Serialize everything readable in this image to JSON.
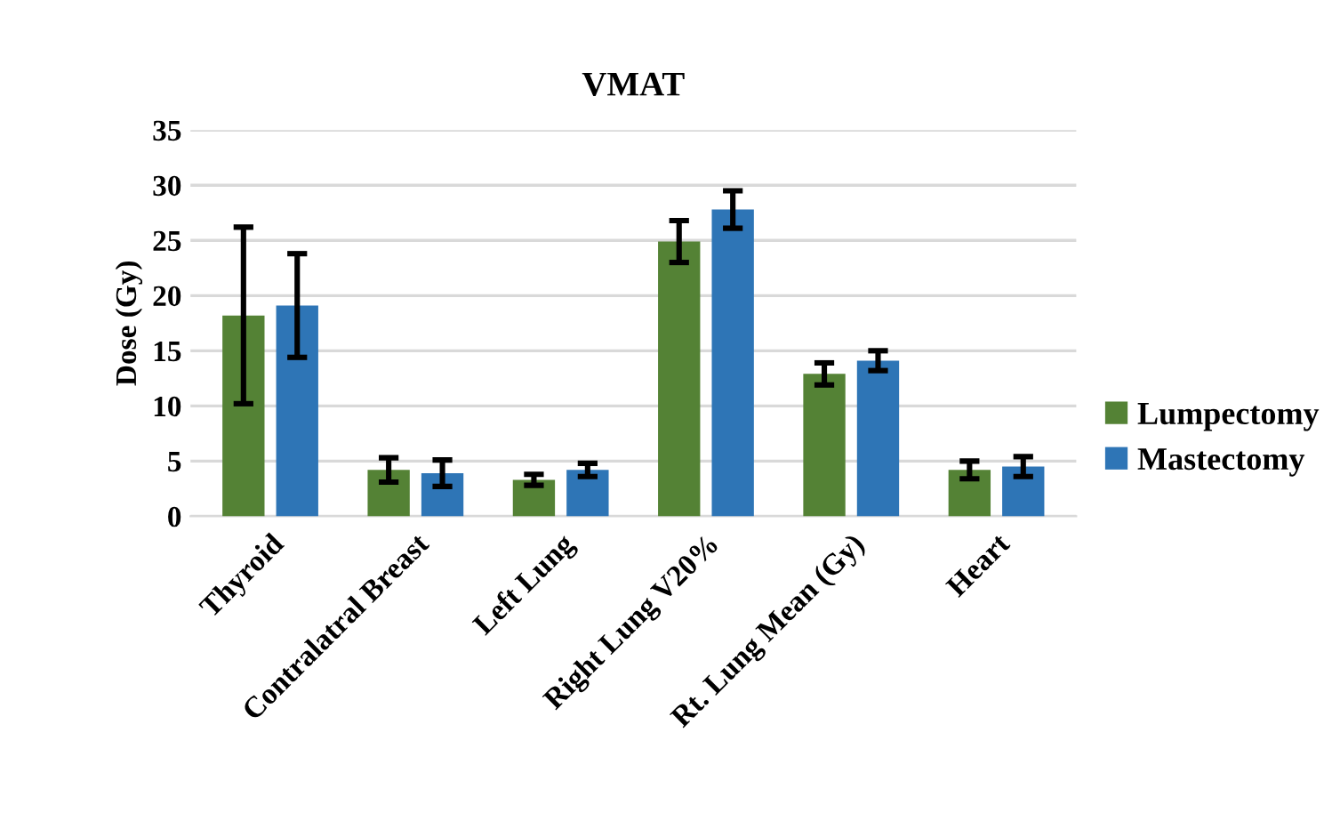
{
  "chart_data": {
    "type": "bar",
    "title": "VMAT",
    "ylabel": "Dose (Gy)",
    "categories": [
      "Thyroid",
      "Contralatral Breast",
      "Left Lung",
      "Right Lung V20%",
      "Rt. Lung Mean (Gy)",
      "Heart"
    ],
    "series": [
      {
        "name": "Lumpectomy",
        "color": "#548235",
        "values": [
          18.2,
          4.2,
          3.3,
          24.9,
          12.9,
          4.2
        ],
        "errors": [
          8,
          1.1,
          0.5,
          1.9,
          1,
          0.8
        ]
      },
      {
        "name": "Mastectomy",
        "color": "#2e75b6",
        "values": [
          19.1,
          3.9,
          4.2,
          27.8,
          14.1,
          4.5
        ],
        "errors": [
          4.7,
          1.2,
          0.6,
          1.7,
          0.9,
          0.9
        ]
      }
    ],
    "ylim": [
      0,
      35
    ],
    "yticks": [
      0,
      5,
      10,
      15,
      20,
      25,
      30,
      35
    ],
    "grid": "y",
    "legend": "right"
  }
}
